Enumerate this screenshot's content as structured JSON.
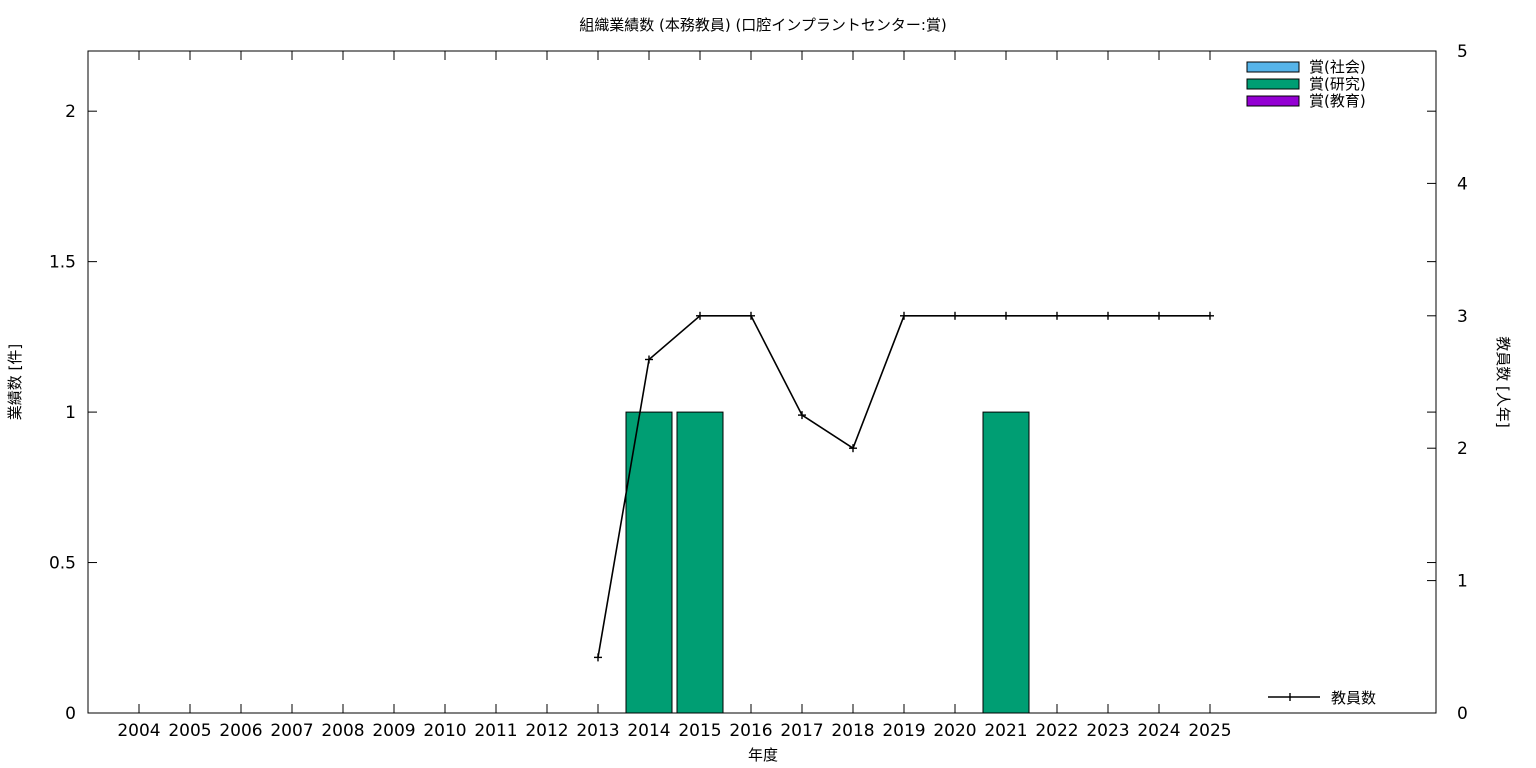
{
  "chart_data": {
    "type": "bar",
    "title": "組織業績数 (本務教員) (口腔インプラントセンター:賞)",
    "xlabel": "年度",
    "ylabel": "業績数 [件]",
    "y2label": "教員数 [人年]",
    "categories": [
      "2004",
      "2005",
      "2006",
      "2007",
      "2008",
      "2009",
      "2010",
      "2011",
      "2012",
      "2013",
      "2014",
      "2015",
      "2016",
      "2017",
      "2018",
      "2019",
      "2020",
      "2021",
      "2022",
      "2023",
      "2024",
      "2025"
    ],
    "ylim": [
      0,
      2.2
    ],
    "y_ticks": [
      "0",
      "0.5",
      "1",
      "1.5",
      "2"
    ],
    "y2lim": [
      0,
      5
    ],
    "y2_ticks": [
      "0",
      "1",
      "2",
      "3",
      "4",
      "5"
    ],
    "series": [
      {
        "name": "賞(社会)",
        "color": "#56b4e9",
        "axis": "y",
        "values": [
          0,
          0,
          0,
          0,
          0,
          0,
          0,
          0,
          0,
          0,
          0,
          0,
          0,
          0,
          0,
          0,
          0,
          0,
          0,
          0,
          0,
          0
        ]
      },
      {
        "name": "賞(研究)",
        "color": "#009e73",
        "axis": "y",
        "values": [
          0,
          0,
          0,
          0,
          0,
          0,
          0,
          0,
          0,
          0,
          1,
          1,
          0,
          0,
          0,
          0,
          0,
          1,
          0,
          0,
          0,
          0
        ]
      },
      {
        "name": "賞(教育)",
        "color": "#9400d3",
        "axis": "y",
        "values": [
          0,
          0,
          0,
          0,
          0,
          0,
          0,
          0,
          0,
          0,
          0,
          0,
          0,
          0,
          0,
          0,
          0,
          0,
          0,
          0,
          0,
          0
        ]
      },
      {
        "name": "教員数",
        "type": "line",
        "color": "#000000",
        "axis": "y2",
        "values": [
          null,
          null,
          null,
          null,
          null,
          null,
          null,
          null,
          null,
          0.42,
          2.67,
          3,
          3,
          2.25,
          2,
          3,
          3,
          3,
          3,
          3,
          3,
          3
        ]
      }
    ],
    "legend_position": "top-right",
    "line_legend_position": "bottom-right",
    "grid": false
  }
}
